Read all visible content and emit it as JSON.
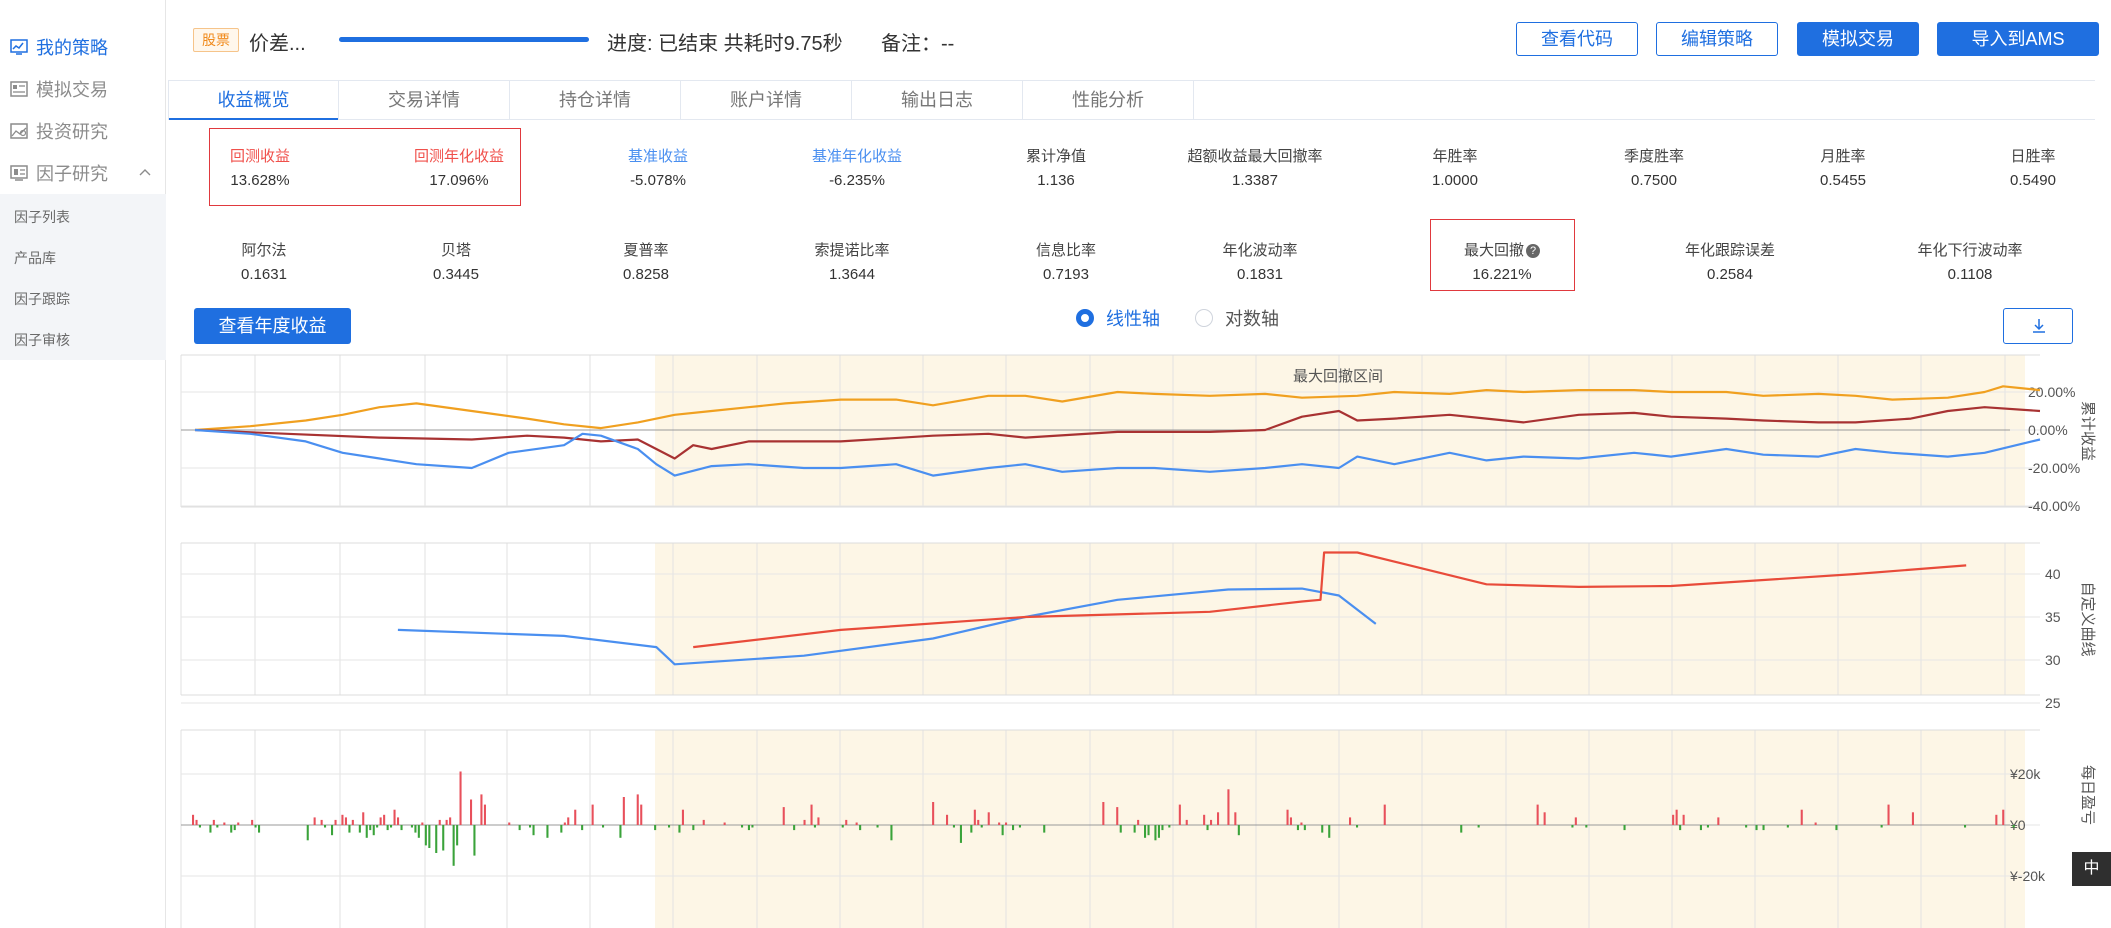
{
  "sidebar": {
    "items": [
      {
        "label": "我的策略",
        "icon": "chart-board-icon",
        "active": true
      },
      {
        "label": "模拟交易",
        "icon": "document-list-icon",
        "active": false
      },
      {
        "label": "投资研究",
        "icon": "image-chart-icon",
        "active": false
      },
      {
        "label": "因子研究",
        "icon": "factor-board-icon",
        "active": false
      }
    ],
    "sub_items": [
      "因子列表",
      "产品库",
      "因子跟踪",
      "因子审核"
    ]
  },
  "header": {
    "tag": "股票",
    "strategy_name": "价差...",
    "progress": 1.0,
    "progress_text": "进度: 已结束 共耗时9.75秒",
    "note_text": "备注：--",
    "buttons": [
      "查看代码",
      "编辑策略",
      "模拟交易",
      "导入到AMS"
    ]
  },
  "tabs": [
    "收益概览",
    "交易详情",
    "持仓详情",
    "账户详情",
    "输出日志",
    "性能分析"
  ],
  "metrics_row1": [
    {
      "label": "回测收益",
      "value": "13.628%",
      "color": "red"
    },
    {
      "label": "回测年化收益",
      "value": "17.096%",
      "color": "red"
    },
    {
      "label": "基准收益",
      "value": "-5.078%",
      "color": "blue"
    },
    {
      "label": "基准年化收益",
      "value": "-6.235%",
      "color": "blue"
    },
    {
      "label": "累计净值",
      "value": "1.136",
      "color": "dark"
    },
    {
      "label": "超额收益最大回撤率",
      "value": "1.3387",
      "color": "dark"
    },
    {
      "label": "年胜率",
      "value": "1.0000",
      "color": "dark"
    },
    {
      "label": "季度胜率",
      "value": "0.7500",
      "color": "dark"
    },
    {
      "label": "月胜率",
      "value": "0.5455",
      "color": "dark"
    },
    {
      "label": "日胜率",
      "value": "0.5490",
      "color": "dark"
    }
  ],
  "metrics_row2": [
    {
      "label": "阿尔法",
      "value": "0.1631"
    },
    {
      "label": "贝塔",
      "value": "0.3445"
    },
    {
      "label": "夏普率",
      "value": "0.8258"
    },
    {
      "label": "索提诺比率",
      "value": "1.3644"
    },
    {
      "label": "信息比率",
      "value": "0.7193"
    },
    {
      "label": "年化波动率",
      "value": "0.1831"
    },
    {
      "label": "最大回撤",
      "value": "16.221%"
    },
    {
      "label": "年化跟踪误差",
      "value": "0.2584"
    },
    {
      "label": "年化下行波动率",
      "value": "0.1108"
    }
  ],
  "controls": {
    "year_button": "查看年度收益",
    "axis_options": [
      "线性轴",
      "对数轴"
    ],
    "selected_axis": "线性轴"
  },
  "colors": {
    "accent": "#1f6fe0",
    "strategy": "#f0a020",
    "excess": "#a83232",
    "benchmark": "#4a8ff0",
    "custom_red": "#e84b3a",
    "custom_blue": "#4a8ff0",
    "gain": "#e8505b",
    "loss": "#3aa33a",
    "drawdown_band": "#fdf6e6"
  },
  "badge": "中",
  "chart_data": [
    {
      "type": "line",
      "name": "cumulative-return",
      "ylabel": "累计收益",
      "annotation": "最大回撤区间",
      "drawdown_range": [
        0.257,
        0.995
      ],
      "ylim": [
        -40,
        20
      ],
      "ytick_labels": [
        "20.00%",
        "0.00%",
        "-20.00%",
        "-40.00%"
      ],
      "yticks": [
        20,
        0,
        -20,
        -40
      ],
      "grid": true,
      "series": [
        {
          "key": "orange",
          "t": [
            0,
            0.03,
            0.06,
            0.08,
            0.1,
            0.12,
            0.15,
            0.18,
            0.2,
            0.22,
            0.24,
            0.26,
            0.28,
            0.3,
            0.32,
            0.35,
            0.38,
            0.4,
            0.43,
            0.45,
            0.47,
            0.5,
            0.52,
            0.55,
            0.58,
            0.6,
            0.63,
            0.65,
            0.68,
            0.7,
            0.72,
            0.75,
            0.78,
            0.8,
            0.83,
            0.85,
            0.88,
            0.9,
            0.92,
            0.95,
            0.97,
            0.98,
            1.0
          ],
          "v": [
            0,
            2,
            5,
            8,
            12,
            14,
            10,
            6,
            3,
            1,
            4,
            8,
            10,
            12,
            14,
            16,
            16,
            13,
            18,
            18,
            15,
            20,
            19,
            18,
            19,
            17,
            18,
            20,
            19,
            21,
            20,
            21,
            21,
            20,
            20,
            18,
            19,
            18,
            16,
            17,
            20,
            23,
            21
          ]
        },
        {
          "key": "darkred",
          "t": [
            0,
            0.05,
            0.1,
            0.15,
            0.18,
            0.2,
            0.22,
            0.24,
            0.25,
            0.26,
            0.27,
            0.28,
            0.3,
            0.35,
            0.4,
            0.43,
            0.45,
            0.5,
            0.55,
            0.58,
            0.6,
            0.62,
            0.63,
            0.65,
            0.68,
            0.7,
            0.72,
            0.75,
            0.78,
            0.8,
            0.83,
            0.85,
            0.88,
            0.9,
            0.93,
            0.95,
            0.97,
            1.0
          ],
          "v": [
            0,
            -2,
            -4,
            -5,
            -3,
            -4,
            -6,
            -5,
            -10,
            -15,
            -8,
            -10,
            -6,
            -6,
            -3,
            -2,
            -4,
            -1,
            -1,
            0,
            7,
            10,
            5,
            6,
            8,
            6,
            4,
            8,
            9,
            7,
            6,
            5,
            4,
            4,
            6,
            10,
            12,
            10
          ]
        },
        {
          "key": "blue",
          "t": [
            0,
            0.03,
            0.06,
            0.08,
            0.1,
            0.12,
            0.15,
            0.17,
            0.2,
            0.21,
            0.22,
            0.24,
            0.25,
            0.26,
            0.28,
            0.3,
            0.33,
            0.35,
            0.38,
            0.4,
            0.43,
            0.45,
            0.47,
            0.5,
            0.52,
            0.55,
            0.58,
            0.6,
            0.62,
            0.63,
            0.65,
            0.68,
            0.7,
            0.72,
            0.75,
            0.78,
            0.8,
            0.83,
            0.85,
            0.88,
            0.9,
            0.92,
            0.95,
            0.97,
            1.0
          ],
          "v": [
            0,
            -2,
            -6,
            -12,
            -15,
            -18,
            -20,
            -12,
            -8,
            -2,
            -3,
            -10,
            -18,
            -24,
            -19,
            -18,
            -20,
            -20,
            -18,
            -24,
            -20,
            -18,
            -22,
            -20,
            -20,
            -22,
            -20,
            -18,
            -20,
            -14,
            -18,
            -12,
            -16,
            -14,
            -15,
            -12,
            -14,
            -10,
            -13,
            -14,
            -10,
            -12,
            -14,
            -12,
            -5
          ]
        }
      ]
    },
    {
      "type": "line",
      "name": "custom-curve",
      "ylabel": "自定义曲线",
      "ylim": [
        25,
        40
      ],
      "ytick_labels": [
        "40",
        "35",
        "30",
        "25"
      ],
      "yticks": [
        40,
        35,
        30,
        25
      ],
      "grid": true,
      "series": [
        {
          "key": "blue",
          "t": [
            0.11,
            0.2,
            0.25,
            0.26,
            0.33,
            0.4,
            0.45,
            0.5,
            0.56,
            0.6,
            0.62,
            0.64
          ],
          "v": [
            33.5,
            32.8,
            31.5,
            29.5,
            30.5,
            32.5,
            35,
            37,
            38.2,
            38.3,
            37.5,
            34.2
          ]
        },
        {
          "key": "red",
          "t": [
            0.27,
            0.35,
            0.45,
            0.55,
            0.6,
            0.61,
            0.612,
            0.63,
            0.7,
            0.75,
            0.8,
            0.9,
            0.96
          ],
          "v": [
            31.5,
            33.5,
            35,
            35.6,
            36.8,
            37,
            42.5,
            42.5,
            38.8,
            38.5,
            38.6,
            40,
            41
          ]
        }
      ]
    },
    {
      "type": "bar",
      "name": "daily-pnl",
      "ylabel": "每日盈亏",
      "ytick_labels": [
        "¥20k",
        "¥0",
        "¥-20k"
      ],
      "yticks": [
        20,
        0,
        -20
      ],
      "ylim": [
        -25,
        25
      ],
      "grid": true,
      "values_k": [
        4,
        2,
        -1,
        0,
        0,
        -3,
        2,
        -1,
        0,
        1,
        0,
        -3,
        -2,
        1,
        0,
        0,
        0,
        2,
        -1,
        -3,
        0,
        0,
        0,
        0,
        0,
        0,
        0,
        0,
        0,
        0,
        0,
        0,
        0,
        -6,
        0,
        3,
        0,
        2,
        -1,
        0,
        -4,
        2,
        0,
        4,
        3,
        -3,
        2,
        0,
        -3,
        5,
        -5,
        -2,
        -4,
        -1,
        3,
        4,
        -2,
        -1,
        6,
        3,
        -2,
        0,
        0,
        -1,
        -3,
        -5,
        1,
        -8,
        -9,
        0,
        -11,
        2,
        -10,
        2,
        3,
        -16,
        -8,
        21,
        0,
        0,
        10,
        -12,
        0,
        12,
        8,
        0,
        0,
        0,
        0,
        0,
        0,
        1,
        0,
        0,
        -2,
        0,
        0,
        -1,
        -4,
        0,
        0,
        0,
        -5,
        0,
        0,
        0,
        -3,
        1,
        3,
        0,
        6,
        0,
        -2,
        0,
        0,
        8,
        0,
        0,
        -1,
        0,
        0,
        0,
        0,
        -5,
        11,
        0,
        0,
        0,
        12,
        8,
        0,
        0,
        0,
        -2,
        0,
        0,
        0,
        -1,
        0,
        0,
        -3,
        6,
        0,
        0,
        -2,
        0,
        0,
        2,
        0,
        0,
        0,
        0,
        0,
        1,
        0,
        0,
        0,
        0,
        -1,
        0,
        -2,
        -1,
        0,
        0,
        0,
        0,
        0,
        0,
        0,
        0,
        7,
        0,
        0,
        -2,
        0,
        0,
        2,
        0,
        8,
        -1,
        3,
        0,
        0,
        0,
        0,
        0,
        0,
        -1,
        2,
        0,
        0,
        1,
        -2,
        0,
        0,
        0,
        0,
        -1,
        0,
        0,
        0,
        -6,
        0,
        0,
        0,
        0,
        0,
        0,
        0,
        0,
        0,
        0,
        0,
        9,
        0,
        0,
        0,
        4,
        0,
        -1,
        0,
        -7,
        0,
        0,
        -3,
        6,
        2,
        -1,
        0,
        5,
        0,
        0,
        1,
        -4,
        1,
        0,
        -2,
        0,
        -1,
        0,
        0,
        0,
        0,
        0,
        0,
        -3,
        0,
        0,
        0,
        0,
        0,
        0,
        0,
        0,
        0,
        0,
        0,
        0,
        0,
        0,
        0,
        0,
        9,
        0,
        0,
        0,
        7,
        -3,
        0,
        0,
        0,
        -3,
        2,
        0,
        -5,
        -4,
        0,
        -6,
        -5,
        -2,
        0,
        -1,
        0,
        0,
        8,
        0,
        2,
        0,
        0,
        0,
        0,
        4,
        -2,
        2,
        0,
        5,
        0,
        0,
        14,
        0,
        5,
        -4,
        0,
        0,
        0,
        0,
        0,
        0,
        0,
        0,
        0,
        0,
        0,
        0,
        0,
        6,
        3,
        0,
        -2,
        1,
        -2,
        0,
        0,
        0,
        0,
        -3,
        0,
        -5,
        0,
        0,
        0,
        0,
        0,
        3,
        0,
        -1,
        0,
        0,
        0,
        0,
        0,
        0,
        0,
        8,
        0,
        0,
        0,
        0,
        0,
        0,
        0,
        0,
        0,
        0,
        0,
        0,
        0,
        0,
        0,
        0,
        0,
        0,
        0,
        0,
        0,
        -3,
        0,
        0,
        0,
        0,
        -1,
        0,
        0,
        0,
        0,
        0,
        0,
        0,
        0,
        0,
        0,
        0,
        0,
        0,
        0,
        0,
        0,
        8,
        0,
        5,
        0,
        0,
        0,
        0,
        0,
        0,
        0,
        -1,
        3,
        0,
        0,
        -1,
        0,
        0,
        0,
        0,
        0,
        0,
        0,
        0,
        0,
        0,
        -2,
        0,
        0,
        0,
        0,
        0,
        0,
        0,
        0,
        0,
        0,
        0,
        0,
        0,
        4,
        6,
        -2,
        4,
        0,
        0,
        0,
        0,
        -2,
        0,
        -1,
        0,
        0,
        3,
        0,
        0,
        0,
        0,
        0,
        0,
        0,
        -1,
        0,
        0,
        -2,
        0,
        -2,
        0,
        0,
        0,
        0,
        0,
        0,
        -1,
        0,
        0,
        0,
        6,
        0,
        0,
        0,
        1,
        0,
        0,
        0,
        0,
        0,
        -2,
        0,
        0,
        0,
        0,
        0,
        0,
        0,
        0,
        0,
        0,
        0,
        0,
        -1,
        0,
        8,
        0,
        0,
        0,
        0,
        0,
        0,
        5,
        0,
        0,
        0,
        0,
        0,
        0,
        0,
        0,
        0,
        0,
        0,
        0,
        0,
        0,
        -1,
        0,
        0,
        0,
        0,
        0,
        0,
        0,
        0,
        4,
        0,
        6,
        0,
        0,
        -1,
        0,
        0,
        0,
        0
      ]
    }
  ]
}
